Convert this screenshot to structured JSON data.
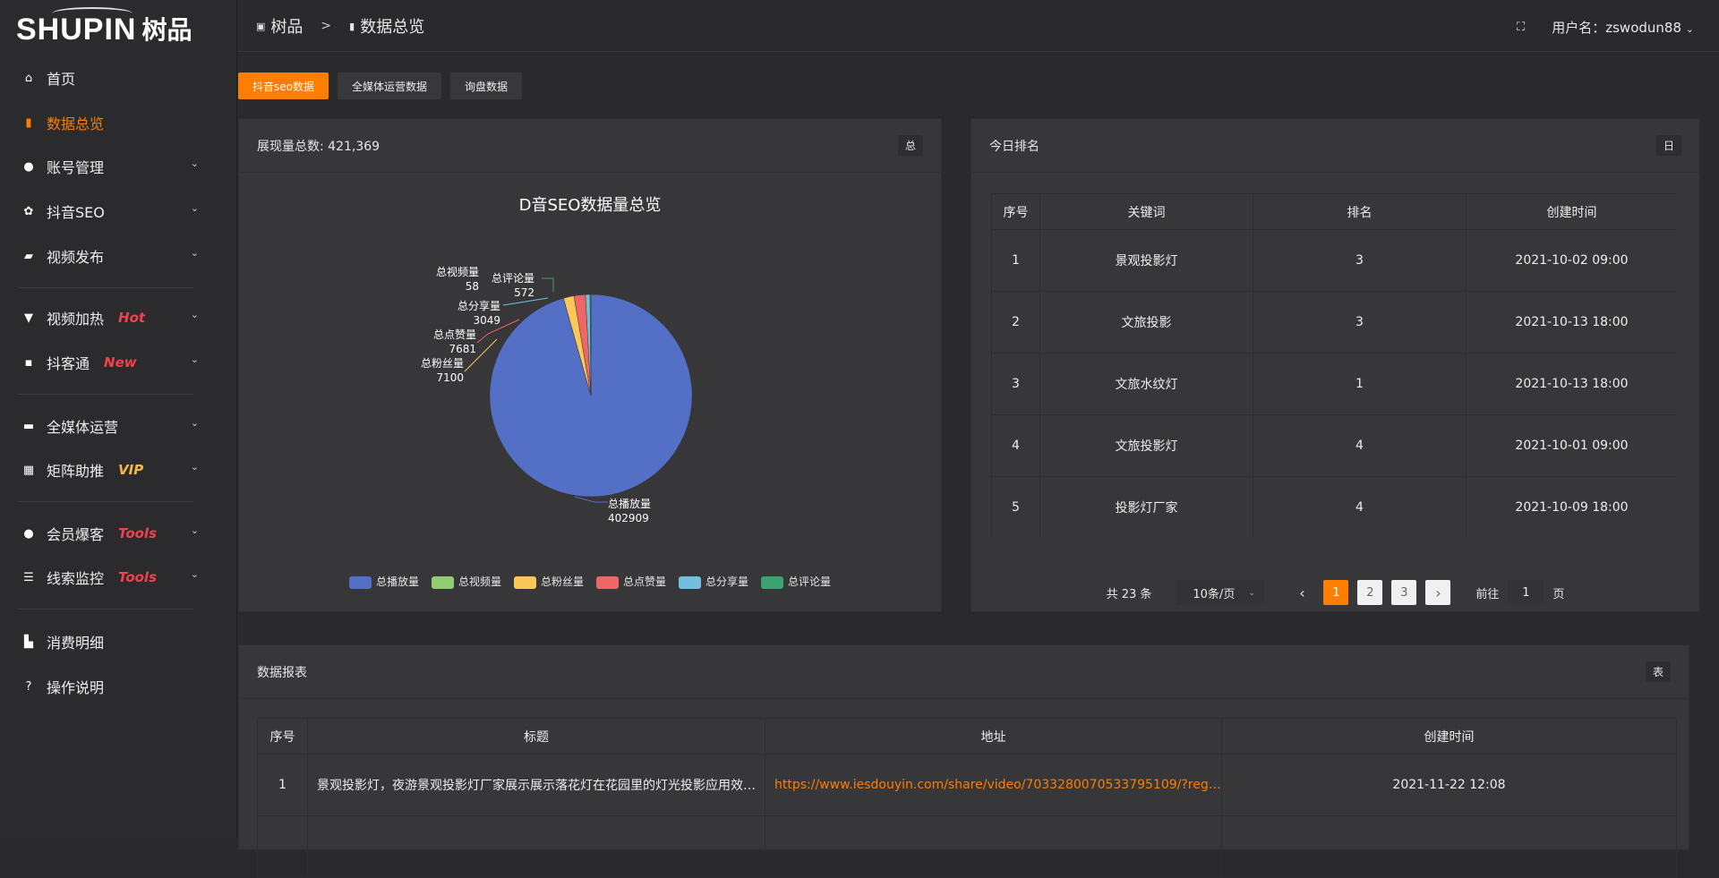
{
  "logo": {
    "en": "SHUPIN",
    "cn": "树品"
  },
  "sidebar": {
    "items": [
      {
        "label": "首页",
        "icon": "home-icon",
        "glyph": "⌂"
      },
      {
        "label": "数据总览",
        "icon": "bar-chart-icon",
        "glyph": "▮",
        "active": true
      },
      {
        "label": "账号管理",
        "icon": "user-icon",
        "glyph": "●",
        "chev": true
      },
      {
        "label": "抖音SEO",
        "icon": "gear-icon",
        "glyph": "✿",
        "chev": true
      },
      {
        "label": "视频发布",
        "icon": "camera-icon",
        "glyph": "▰",
        "chev": true
      },
      {
        "label": "视频加热",
        "icon": "sign-icon",
        "glyph": "▼",
        "chev": true,
        "badge": "Hot",
        "badge_color": "#f0424a"
      },
      {
        "label": "抖客通",
        "icon": "chat-icon",
        "glyph": "▪",
        "chev": true,
        "badge": "New",
        "badge_color": "#f0424a"
      },
      {
        "label": "全媒体运营",
        "icon": "monitor-icon",
        "glyph": "▬",
        "chev": true
      },
      {
        "label": "矩阵助推",
        "icon": "grid-icon",
        "glyph": "▦",
        "chev": true,
        "badge": "VIP",
        "badge_color": "#f5b942"
      },
      {
        "label": "会员爆客",
        "icon": "user-icon",
        "glyph": "●",
        "chev": true,
        "badge": "Tools",
        "badge_color": "#f0424a"
      },
      {
        "label": "线索监控",
        "icon": "sliders-icon",
        "glyph": "☰",
        "chev": true,
        "badge": "Tools",
        "badge_color": "#f0424a"
      },
      {
        "label": "消费明细",
        "icon": "wallet-icon",
        "glyph": "▙"
      },
      {
        "label": "操作说明",
        "icon": "question-icon",
        "glyph": "?"
      }
    ]
  },
  "header": {
    "breadcrumb": [
      "树品",
      "数据总览"
    ],
    "sep": ">",
    "user_label": "用户名：zswodun88"
  },
  "tabs": [
    "抖音seo数据",
    "全媒体运营数据",
    "询盘数据"
  ],
  "summary_card": {
    "title": "展现量总数: 421,369",
    "tag": "总"
  },
  "rank_card": {
    "title": "今日排名",
    "tag": "日",
    "columns": [
      "序号",
      "关键词",
      "排名",
      "创建时间"
    ],
    "rows": [
      [
        "1",
        "景观投影灯",
        "3",
        "2021-10-02 09:00"
      ],
      [
        "2",
        "文旅投影",
        "3",
        "2021-10-13 18:00"
      ],
      [
        "3",
        "文旅水纹灯",
        "1",
        "2021-10-13 18:00"
      ],
      [
        "4",
        "文旅投影灯",
        "4",
        "2021-10-01 09:00"
      ],
      [
        "5",
        "投影灯厂家",
        "4",
        "2021-10-09 18:00"
      ]
    ],
    "pagination": {
      "total": "共 23 条",
      "page_size": "10条/页",
      "pages": [
        "1",
        "2",
        "3"
      ],
      "current": 1,
      "goto_label": "前往",
      "goto_value": "1",
      "page_suffix": "页",
      "prev": "‹",
      "next": "›"
    }
  },
  "report_card": {
    "title": "数据报表",
    "tag": "表",
    "columns": [
      "序号",
      "标题",
      "地址",
      "创建时间"
    ],
    "rows": [
      [
        "1",
        "景观投影灯，夜游景观投影灯厂家展示展示落花灯在花园里的灯光投影应用效果 #",
        "https://www.iesdouyin.com/share/video/7033280070533795109/?regio...",
        "2021-11-22 12:08"
      ]
    ]
  },
  "chart_data": {
    "type": "pie",
    "title": "D音SEO数据量总览",
    "legend_position": "bottom",
    "slices": [
      {
        "name": "总播放量",
        "value": 402909,
        "color": "#5470c6"
      },
      {
        "name": "总视频量",
        "value": 58,
        "color": "#91cc75"
      },
      {
        "name": "总粉丝量",
        "value": 7100,
        "color": "#fac858"
      },
      {
        "name": "总点赞量",
        "value": 7681,
        "color": "#ee6666"
      },
      {
        "name": "总分享量",
        "value": 3049,
        "color": "#73c0de"
      },
      {
        "name": "总评论量",
        "value": 572,
        "color": "#3ba272"
      }
    ]
  },
  "colors": {
    "accent": "#ff7d00",
    "link": "#ff7d00"
  }
}
